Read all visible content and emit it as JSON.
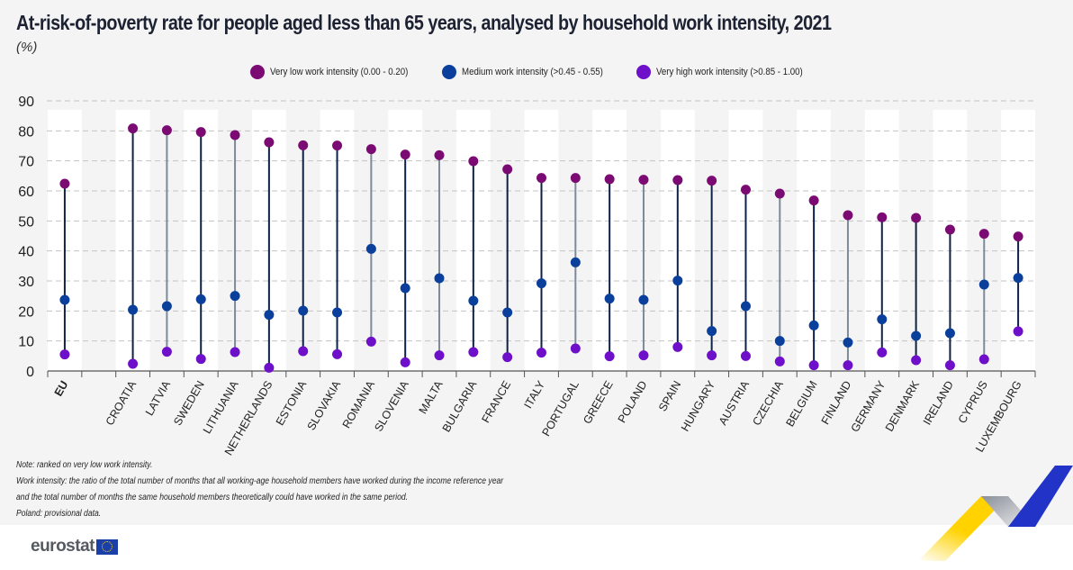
{
  "header": {
    "title": "At-risk-of-poverty rate for people aged less than 65 years, analysed by household work intensity, 2021",
    "subtitle": "(%)"
  },
  "legend": [
    {
      "label": "Very low work intensity (0.00 - 0.20)",
      "color": "#7b0a73"
    },
    {
      "label": "Medium work intensity (>0.45 - 0.55)",
      "color": "#0a3f9c"
    },
    {
      "label": "Very high work intensity (>0.85 - 1.00)",
      "color": "#6e0fc9"
    }
  ],
  "chart_data": {
    "type": "scatter",
    "subtype": "dot-range",
    "title": "At-risk-of-poverty rate for people aged less than 65 years, analysed by household work intensity, 2021",
    "ylabel": "(%)",
    "xlabel": "",
    "ylim": [
      0,
      90
    ],
    "yticks": [
      0,
      10,
      20,
      30,
      40,
      50,
      60,
      70,
      80,
      90
    ],
    "grid": true,
    "legend_position": "top-center",
    "categories": [
      "EU",
      "",
      "CROATIA",
      "LATVIA",
      "SWEDEN",
      "LITHUANIA",
      "NETHERLANDS",
      "ESTONIA",
      "SLOVAKIA",
      "ROMANIA",
      "SLOVENIA",
      "MALTA",
      "BULGARIA",
      "FRANCE",
      "ITALY",
      "PORTUGAL",
      "GREECE",
      "POLAND",
      "SPAIN",
      "HUNGARY",
      "AUSTRIA",
      "CZECHIA",
      "BELGIUM",
      "FINLAND",
      "GERMANY",
      "DENMARK",
      "IRELAND",
      "CYPRUS",
      "LUXEMBOURG"
    ],
    "series": [
      {
        "name": "Very low work intensity (0.00 - 0.20)",
        "color": "#7b0a73",
        "values": [
          62.4,
          null,
          80.8,
          80.2,
          79.6,
          78.6,
          76.2,
          75.2,
          75.1,
          73.9,
          72.1,
          71.9,
          69.9,
          67.2,
          64.3,
          64.3,
          63.9,
          63.7,
          63.6,
          63.4,
          60.4,
          59.1,
          56.8,
          51.9,
          51.2,
          51.0,
          47.1,
          45.7,
          44.8
        ]
      },
      {
        "name": "Medium work intensity (>0.45 - 0.55)",
        "color": "#0a3f9c",
        "values": [
          23.7,
          null,
          20.4,
          21.6,
          23.9,
          25.0,
          18.7,
          20.1,
          19.5,
          40.7,
          27.6,
          30.9,
          23.4,
          19.5,
          29.2,
          36.2,
          24.1,
          23.7,
          30.1,
          13.3,
          21.6,
          10.0,
          15.2,
          9.5,
          17.2,
          11.7,
          12.6,
          28.8,
          31.0
        ]
      },
      {
        "name": "Very high work intensity (>0.85 - 1.00)",
        "color": "#6e0fc9",
        "values": [
          5.5,
          null,
          2.4,
          6.4,
          4.0,
          6.3,
          1.1,
          6.6,
          5.6,
          9.8,
          2.9,
          5.2,
          6.3,
          4.6,
          6.1,
          7.5,
          4.9,
          5.2,
          8.0,
          5.2,
          5.0,
          3.2,
          1.9,
          1.9,
          6.2,
          3.6,
          1.9,
          3.9,
          13.2
        ]
      }
    ],
    "line_colors": {
      "dark": "#0d2245",
      "light": "#7d8a9a"
    }
  },
  "notes": [
    "Note: ranked on very low work intensity.",
    "Work intensity: the ratio of the total number of months that all working-age household members have worked during the income reference year",
    "and the total number of months the same household members theoretically could have worked in the same period.",
    "Poland: provisional data."
  ],
  "footer": {
    "logo_text": "eurostat"
  }
}
